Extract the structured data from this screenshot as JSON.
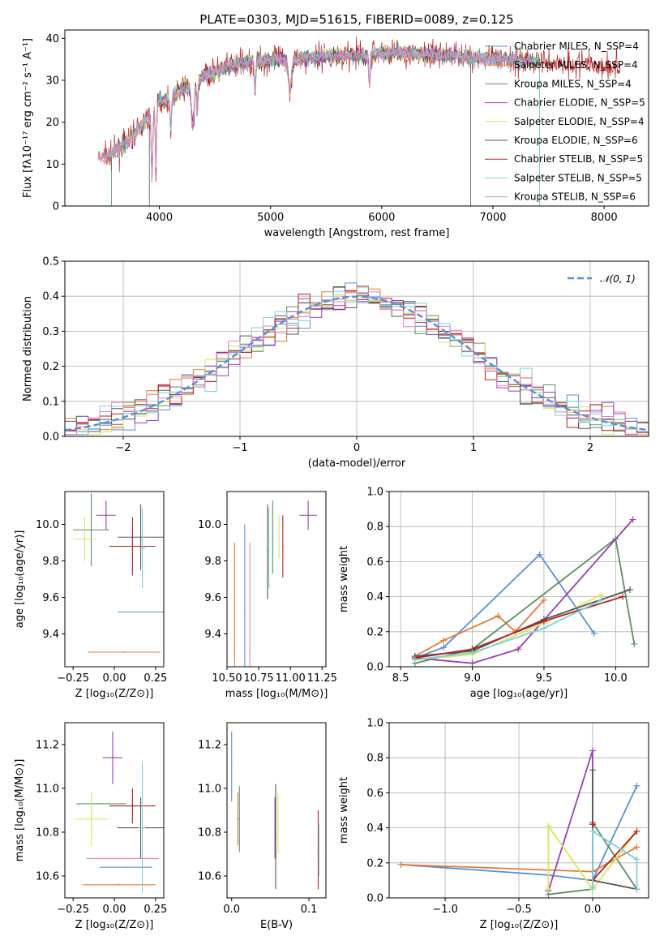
{
  "title": "PLATE=0303, MJD=51615, FIBERID=0089, z=0.125",
  "colors": {
    "models": [
      "#5b8fd6",
      "#e07b39",
      "#5a9060",
      "#9b3eb5",
      "#d8e65a",
      "#555555",
      "#b22222",
      "#7ecfd8",
      "#e67fc0"
    ]
  },
  "chart_data": [
    {
      "id": "spectrum",
      "type": "line",
      "xlabel": "wavelength [Angstrom, rest frame]",
      "ylabel": "Flux [fλ10⁻¹⁷ erg cm⁻² s⁻¹ A⁻¹]",
      "xlim": [
        3150,
        8400
      ],
      "ylim": [
        0,
        42
      ],
      "xticks": [
        4000,
        5000,
        6000,
        7000,
        8000
      ],
      "yticks": [
        0,
        10,
        20,
        30,
        40
      ],
      "legend_position": "top-right",
      "series": [
        {
          "name": "Chabrier MILES, N_SSP=4"
        },
        {
          "name": "Salpeter MILES, N_SSP=4"
        },
        {
          "name": "Kroupa MILES, N_SSP=4"
        },
        {
          "name": "Chabrier ELODIE, N_SSP=5"
        },
        {
          "name": "Salpeter ELODIE, N_SSP=4"
        },
        {
          "name": "Kroupa ELODIE, N_SSP=6"
        },
        {
          "name": "Chabrier STELIB, N_SSP=5"
        },
        {
          "name": "Salpeter STELIB, N_SSP=5"
        },
        {
          "name": "Kroupa STELIB, N_SSP=6"
        }
      ],
      "continuum": {
        "x": [
          3450,
          3550,
          3700,
          3800,
          3900,
          4000,
          4100,
          4200,
          4300,
          4400,
          4500,
          4700,
          4900,
          5000,
          5200,
          5400,
          5600,
          5800,
          6000,
          6200,
          6400,
          6600,
          6800,
          7000,
          7200,
          7400,
          7600,
          7800,
          8000,
          8150
        ],
        "y": [
          12,
          12,
          15,
          18,
          21,
          25,
          26,
          28,
          29,
          31,
          32,
          34,
          34.5,
          35,
          35,
          35.5,
          36,
          36,
          36.5,
          36.5,
          36,
          36,
          35.5,
          35,
          35,
          34.5,
          34,
          34,
          33.5,
          33
        ]
      }
    },
    {
      "id": "residuals",
      "type": "step",
      "xlabel": "(data-model)/error",
      "ylabel": "Normed distribution",
      "xlim": [
        -2.5,
        2.5
      ],
      "ylim": [
        0,
        0.5
      ],
      "xticks": [
        -2,
        -1,
        0,
        1,
        2
      ],
      "yticks": [
        0.0,
        0.1,
        0.2,
        0.3,
        0.4,
        0.5
      ],
      "legend_position": "top-right",
      "reference": {
        "name": "𝒩(0, 1)",
        "mean": 0,
        "sigma": 1
      }
    },
    {
      "id": "age-vs-Z",
      "type": "errorbar",
      "xlabel": "Z [log₁₀(Z/Z⊙)]",
      "ylabel": "age  [log₁₀(age/yr)]",
      "xlim": [
        -0.3,
        0.3
      ],
      "ylim": [
        9.22,
        10.18
      ],
      "xticks": [
        -0.25,
        0.0,
        0.25
      ],
      "yticks": [
        9.4,
        9.6,
        9.8,
        10.0
      ],
      "points": [
        {
          "x": 0.16,
          "xerr": 0.14,
          "y": 9.52,
          "yerr": 0.0
        },
        {
          "x": 0.06,
          "xerr": 0.22,
          "y": 9.3,
          "yerr": 0.0
        },
        {
          "x": -0.14,
          "xerr": 0.11,
          "y": 9.97,
          "yerr": 0.2
        },
        {
          "x": -0.05,
          "xerr": 0.06,
          "y": 10.05,
          "yerr": 0.08
        },
        {
          "x": -0.18,
          "xerr": 0.07,
          "y": 9.92,
          "yerr": 0.12
        },
        {
          "x": 0.16,
          "xerr": 0.14,
          "y": 9.93,
          "yerr": 0.18
        },
        {
          "x": 0.11,
          "xerr": 0.14,
          "y": 9.88,
          "yerr": 0.16
        },
        {
          "x": 0.17,
          "xerr": 0.02,
          "y": 9.87,
          "yerr": 0.22
        }
      ]
    },
    {
      "id": "age-vs-mass",
      "type": "errorbar",
      "xlabel": "mass [log₁₀(M/M⊙)]",
      "ylabel": "",
      "xlim": [
        10.5,
        11.28
      ],
      "ylim": [
        9.22,
        10.18
      ],
      "xticks": [
        10.5,
        10.75,
        11.0,
        11.25
      ],
      "yticks": [
        9.4,
        9.6,
        9.8,
        10.0
      ],
      "points": [
        {
          "x": 10.64,
          "xerr": 0.0,
          "y": 9.52,
          "yerr": 0.48
        },
        {
          "x": 10.56,
          "xerr": 0.0,
          "y": 9.3,
          "yerr": 0.6
        },
        {
          "x": 10.86,
          "xerr": 0.0,
          "y": 9.93,
          "yerr": 0.2
        },
        {
          "x": 11.14,
          "xerr": 0.07,
          "y": 10.05,
          "yerr": 0.08
        },
        {
          "x": 10.91,
          "xerr": 0.0,
          "y": 9.93,
          "yerr": 0.12
        },
        {
          "x": 10.82,
          "xerr": 0.0,
          "y": 9.85,
          "yerr": 0.26
        },
        {
          "x": 10.94,
          "xerr": 0.0,
          "y": 9.88,
          "yerr": 0.17
        },
        {
          "x": 10.83,
          "xerr": 0.0,
          "y": 9.87,
          "yerr": 0.22
        },
        {
          "x": 10.68,
          "xerr": 0.0,
          "y": 9.3,
          "yerr": 0.6
        }
      ]
    },
    {
      "id": "weight-vs-age",
      "type": "line",
      "xlabel": "age  [log₁₀(age/yr)]",
      "ylabel": "mass weight",
      "xlim": [
        8.42,
        10.23
      ],
      "ylim": [
        0,
        1
      ],
      "xticks": [
        8.5,
        9.0,
        9.5,
        10.0
      ],
      "yticks": [
        0.0,
        0.2,
        0.4,
        0.6,
        0.8,
        1.0
      ],
      "series": [
        {
          "x": [
            8.6,
            8.8,
            9.47,
            9.85
          ],
          "y": [
            0.05,
            0.11,
            0.64,
            0.19
          ]
        },
        {
          "x": [
            8.6,
            8.8,
            9.18,
            9.3,
            9.5
          ],
          "y": [
            0.06,
            0.15,
            0.29,
            0.2,
            0.38
          ]
        },
        {
          "x": [
            8.6,
            9.0,
            10.0,
            10.13
          ],
          "y": [
            0.02,
            0.1,
            0.73,
            0.13
          ]
        },
        {
          "x": [
            8.6,
            9.0,
            9.32,
            10.12
          ],
          "y": [
            0.05,
            0.02,
            0.1,
            0.84
          ]
        },
        {
          "x": [
            8.6,
            9.0,
            9.5,
            9.9
          ],
          "y": [
            0.04,
            0.07,
            0.25,
            0.41
          ]
        },
        {
          "x": [
            8.6,
            9.0,
            9.5,
            10.1
          ],
          "y": [
            0.06,
            0.09,
            0.27,
            0.44
          ]
        },
        {
          "x": [
            8.6,
            9.0,
            9.5,
            10.05
          ],
          "y": [
            0.05,
            0.1,
            0.26,
            0.4
          ]
        },
        {
          "x": [
            8.6,
            9.0,
            9.5,
            9.9
          ],
          "y": [
            0.04,
            0.08,
            0.22,
            0.38
          ]
        }
      ]
    },
    {
      "id": "mass-vs-Z",
      "type": "errorbar",
      "xlabel": "Z [log₁₀(Z/Z⊙)]",
      "ylabel": "mass [log₁₀(M/M⊙)]",
      "xlim": [
        -0.3,
        0.3
      ],
      "ylim": [
        10.5,
        11.3
      ],
      "xticks": [
        -0.25,
        0.0,
        0.25
      ],
      "yticks": [
        10.6,
        10.8,
        11.0,
        11.2
      ],
      "points": [
        {
          "x": 0.07,
          "xerr": 0.16,
          "y": 10.64,
          "yerr": 0.0
        },
        {
          "x": 0.03,
          "xerr": 0.22,
          "y": 10.56,
          "yerr": 0.0
        },
        {
          "x": -0.08,
          "xerr": 0.15,
          "y": 10.93,
          "yerr": 0.0
        },
        {
          "x": -0.01,
          "xerr": 0.06,
          "y": 11.14,
          "yerr": 0.12
        },
        {
          "x": -0.14,
          "xerr": 0.1,
          "y": 10.86,
          "yerr": 0.12
        },
        {
          "x": 0.16,
          "xerr": 0.14,
          "y": 10.82,
          "yerr": 0.14
        },
        {
          "x": 0.11,
          "xerr": 0.14,
          "y": 10.92,
          "yerr": 0.08
        },
        {
          "x": 0.17,
          "xerr": 0.02,
          "y": 10.82,
          "yerr": 0.3
        },
        {
          "x": 0.05,
          "xerr": 0.22,
          "y": 10.68,
          "yerr": 0.0
        }
      ]
    },
    {
      "id": "mass-vs-ebv",
      "type": "errorbar",
      "xlabel": "E(B-V)",
      "ylabel": "",
      "xlim": [
        -0.006,
        0.122
      ],
      "ylim": [
        10.5,
        11.3
      ],
      "xticks": [
        0.0,
        0.1
      ],
      "yticks": [
        10.6,
        10.8,
        11.0,
        11.2
      ],
      "points": [
        {
          "x": 0.0,
          "y": 11.1,
          "yerr": 0.16
        },
        {
          "x": 0.008,
          "y": 10.86,
          "yerr": 0.12
        },
        {
          "x": 0.01,
          "y": 10.86,
          "yerr": 0.15
        },
        {
          "x": 0.056,
          "y": 10.82,
          "yerr": 0.14
        },
        {
          "x": 0.06,
          "y": 10.84,
          "yerr": 0.14
        },
        {
          "x": 0.057,
          "y": 10.78,
          "yerr": 0.24
        },
        {
          "x": 0.112,
          "y": 10.72,
          "yerr": 0.18
        },
        {
          "x": 0.113,
          "y": 10.72,
          "yerr": 0.12
        }
      ]
    },
    {
      "id": "weight-vs-Z",
      "type": "line",
      "xlabel": "Z [log₁₀(Z/Z⊙)]",
      "ylabel": "mass weight",
      "xlim": [
        -1.38,
        0.38
      ],
      "ylim": [
        0,
        1
      ],
      "xticks": [
        -1.0,
        -0.5,
        0.0
      ],
      "yticks": [
        0.0,
        0.2,
        0.4,
        0.6,
        0.8,
        1.0
      ],
      "series": [
        {
          "x": [
            -1.3,
            -0.3,
            0.0,
            0.3
          ],
          "y": [
            0.19,
            0.13,
            0.1,
            0.64
          ]
        },
        {
          "x": [
            -1.3,
            0.0,
            0.3
          ],
          "y": [
            0.19,
            0.15,
            0.29
          ]
        },
        {
          "x": [
            -0.3,
            0.0,
            0.0,
            0.3
          ],
          "y": [
            0.02,
            0.05,
            0.43,
            0.05
          ]
        },
        {
          "x": [
            -0.3,
            0.0,
            0.0
          ],
          "y": [
            0.04,
            0.84,
            0.1
          ]
        },
        {
          "x": [
            -0.3,
            -0.3,
            0.0,
            0.3
          ],
          "y": [
            0.05,
            0.41,
            0.05,
            0.38
          ]
        },
        {
          "x": [
            0.0,
            0.0,
            0.3
          ],
          "y": [
            0.73,
            0.1,
            0.05
          ]
        },
        {
          "x": [
            0.0,
            0.0,
            0.3
          ],
          "y": [
            0.42,
            0.1,
            0.38
          ]
        },
        {
          "x": [
            0.0,
            0.0,
            0.3,
            0.3
          ],
          "y": [
            0.06,
            0.38,
            0.22,
            0.05
          ]
        }
      ]
    }
  ]
}
